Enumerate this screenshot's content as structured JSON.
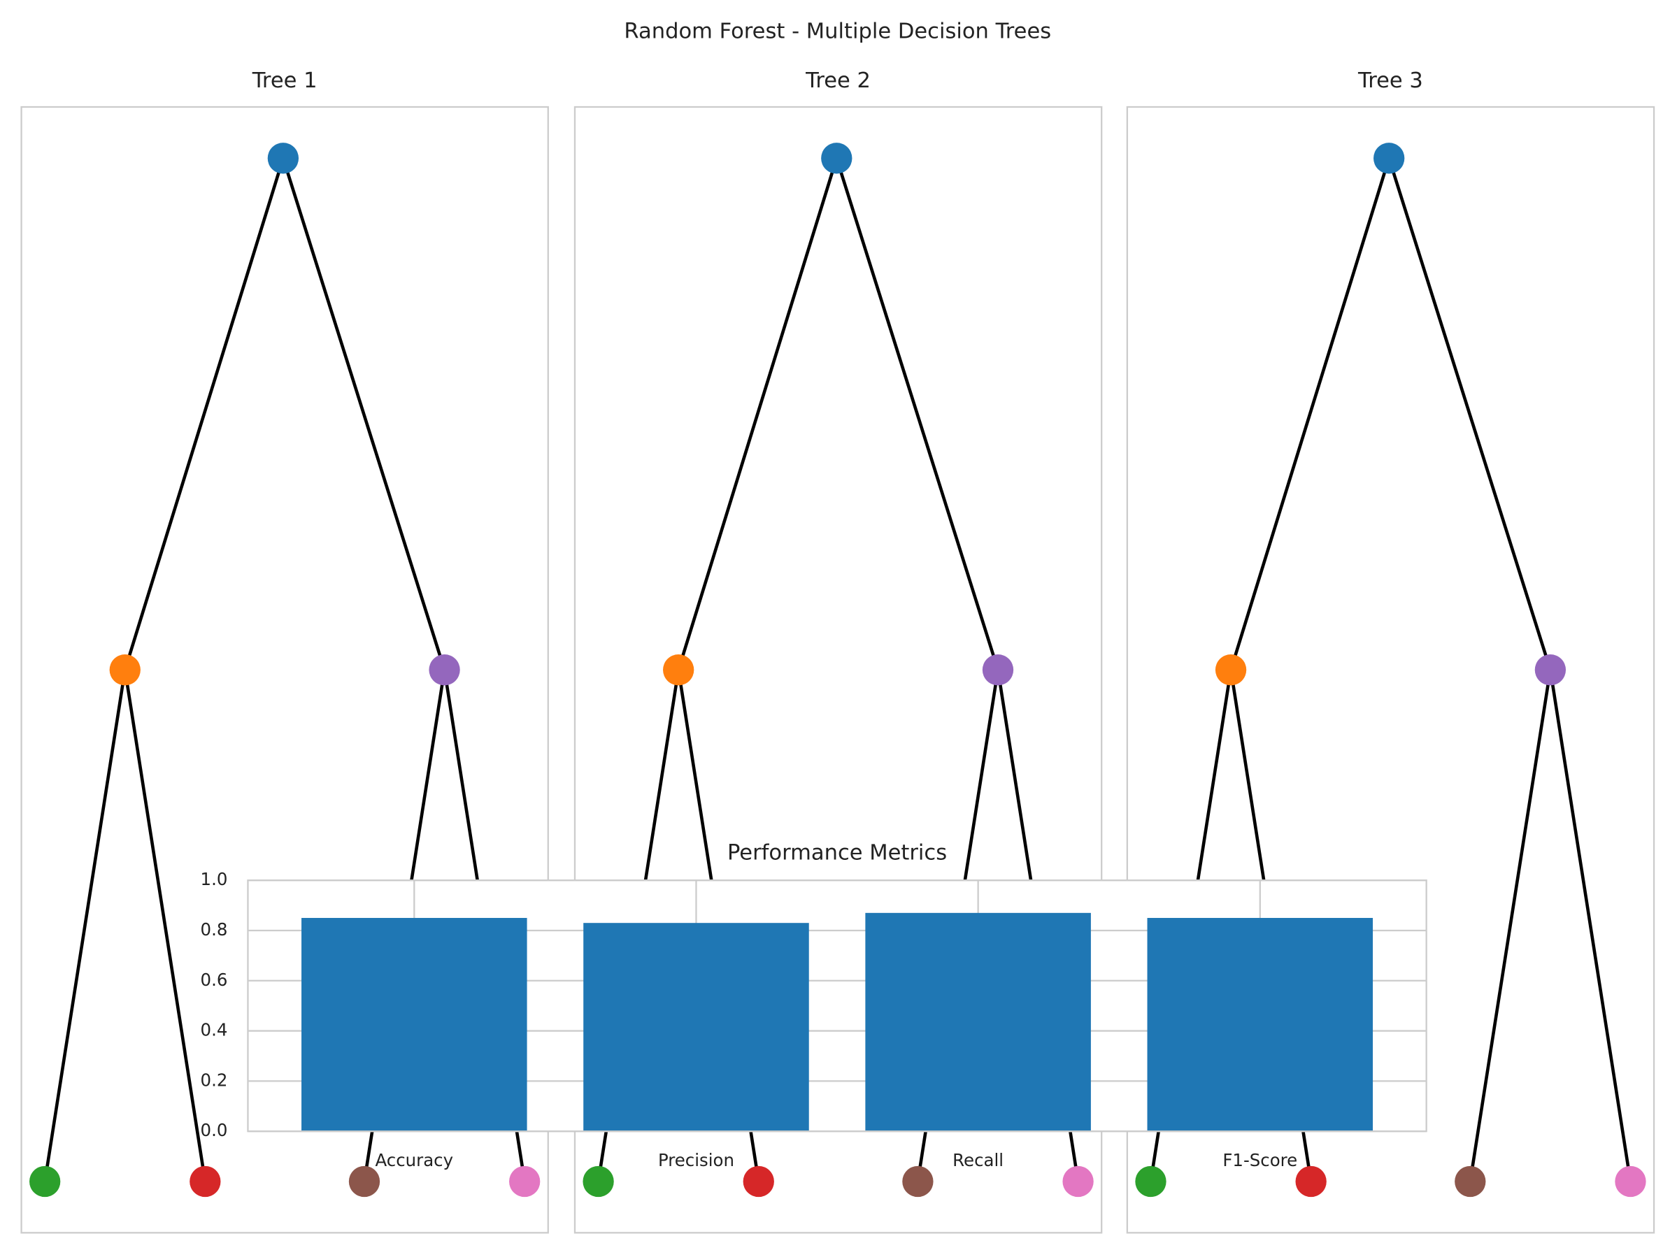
{
  "title": "Random Forest - Multiple Decision Trees",
  "trees": [
    {
      "title": "Tree 1"
    },
    {
      "title": "Tree 2"
    },
    {
      "title": "Tree 3"
    }
  ],
  "tree_node_colors": [
    "#1f77b4",
    "#ff7f0e",
    "#9467bd",
    "#2ca02c",
    "#d62728",
    "#8c564b",
    "#e377c2"
  ],
  "chart_data": {
    "type": "bar",
    "title": "Performance Metrics",
    "categories": [
      "Accuracy",
      "Precision",
      "Recall",
      "F1-Score"
    ],
    "values": [
      0.85,
      0.83,
      0.87,
      0.85
    ],
    "color": "#1f77b4",
    "ylim": [
      0,
      1
    ],
    "yticks": [
      {
        "value": 0,
        "label": "0.0"
      },
      {
        "value": 0.2,
        "label": "0.2"
      },
      {
        "value": 0.4,
        "label": "0.4"
      },
      {
        "value": 0.6,
        "label": "0.6"
      },
      {
        "value": 0.8,
        "label": "0.8"
      },
      {
        "value": 1,
        "label": "1.0"
      }
    ],
    "grid": true
  }
}
